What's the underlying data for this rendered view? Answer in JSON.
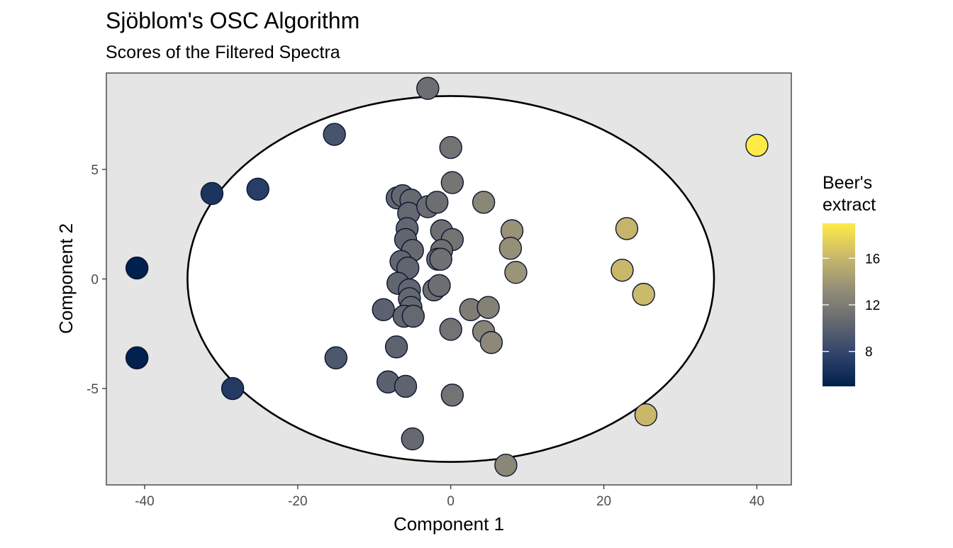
{
  "chart_data": {
    "type": "scatter",
    "title": "Sjöblom's OSC Algorithm",
    "subtitle": "Scores of the Filtered Spectra",
    "xlabel": "Component 1",
    "ylabel": "Component 2",
    "xlim": [
      -45,
      44.5
    ],
    "ylim": [
      -9.4,
      9.4
    ],
    "x_ticks": [
      -40,
      -20,
      0,
      20,
      40
    ],
    "y_ticks": [
      -5,
      0,
      5
    ],
    "x_tick_labels": [
      "-40",
      "-20",
      "0",
      "20",
      "40"
    ],
    "y_tick_labels": [
      "-5",
      "0",
      "5"
    ],
    "grid": false,
    "panel_background": "#e5e5e5",
    "ellipse": {
      "center": [
        0,
        0
      ],
      "rx": 34.4,
      "ry": 8.35,
      "fill": "#ffffff",
      "stroke": "#000000"
    },
    "color_scale": {
      "name": "Beer's extract",
      "title_lines": [
        "Beer's",
        "extract"
      ],
      "min": 5.0,
      "max": 19.0,
      "ticks": [
        8,
        12,
        16
      ],
      "tick_labels": [
        "8",
        "12",
        "16"
      ],
      "colors": [
        "#00204d",
        "#31446b",
        "#666970",
        "#958f78",
        "#cbba69",
        "#ffea46"
      ],
      "legend_position": "right"
    },
    "points": [
      {
        "x": -3.0,
        "y": 8.7,
        "c": 11.0
      },
      {
        "x": -15.2,
        "y": 6.6,
        "c": 9.0
      },
      {
        "x": 0.0,
        "y": 6.0,
        "c": 11.4
      },
      {
        "x": 40.0,
        "y": 6.1,
        "c": 19.0
      },
      {
        "x": 0.2,
        "y": 4.4,
        "c": 11.5
      },
      {
        "x": -31.2,
        "y": 3.9,
        "c": 6.6
      },
      {
        "x": -25.2,
        "y": 4.1,
        "c": 7.3
      },
      {
        "x": -7.0,
        "y": 3.7,
        "c": 10.4
      },
      {
        "x": -6.3,
        "y": 3.8,
        "c": 10.5
      },
      {
        "x": -5.2,
        "y": 3.6,
        "c": 10.6
      },
      {
        "x": -5.5,
        "y": 3.0,
        "c": 10.5
      },
      {
        "x": -3.0,
        "y": 3.3,
        "c": 10.8
      },
      {
        "x": -1.8,
        "y": 3.5,
        "c": 11.0
      },
      {
        "x": 4.3,
        "y": 3.5,
        "c": 12.8
      },
      {
        "x": -5.7,
        "y": 2.3,
        "c": 10.4
      },
      {
        "x": -5.9,
        "y": 1.8,
        "c": 10.3
      },
      {
        "x": -5.0,
        "y": 1.3,
        "c": 10.6
      },
      {
        "x": -1.2,
        "y": 2.2,
        "c": 11.0
      },
      {
        "x": 0.2,
        "y": 1.8,
        "c": 11.4
      },
      {
        "x": -1.2,
        "y": 1.3,
        "c": 11.1
      },
      {
        "x": 8.0,
        "y": 2.2,
        "c": 13.6
      },
      {
        "x": 23.0,
        "y": 2.3,
        "c": 15.9
      },
      {
        "x": -6.5,
        "y": 0.8,
        "c": 10.4
      },
      {
        "x": -5.6,
        "y": 0.5,
        "c": 10.3
      },
      {
        "x": -1.7,
        "y": 0.9,
        "c": 11.0
      },
      {
        "x": -1.3,
        "y": 0.9,
        "c": 11.1
      },
      {
        "x": 7.8,
        "y": 1.4,
        "c": 13.4
      },
      {
        "x": 8.5,
        "y": 0.3,
        "c": 13.7
      },
      {
        "x": 22.4,
        "y": 0.4,
        "c": 16.1
      },
      {
        "x": -41.0,
        "y": 0.5,
        "c": 5.0
      },
      {
        "x": -6.9,
        "y": -0.2,
        "c": 10.3
      },
      {
        "x": -5.4,
        "y": -0.5,
        "c": 10.4
      },
      {
        "x": -2.2,
        "y": -0.5,
        "c": 10.9
      },
      {
        "x": -1.5,
        "y": -0.3,
        "c": 11.0
      },
      {
        "x": 25.2,
        "y": -0.7,
        "c": 16.2
      },
      {
        "x": -5.4,
        "y": -0.9,
        "c": 10.5
      },
      {
        "x": -5.2,
        "y": -1.3,
        "c": 10.5
      },
      {
        "x": -8.8,
        "y": -1.4,
        "c": 10.0
      },
      {
        "x": -6.1,
        "y": -1.7,
        "c": 10.3
      },
      {
        "x": -4.9,
        "y": -1.7,
        "c": 10.5
      },
      {
        "x": 2.6,
        "y": -1.4,
        "c": 12.0
      },
      {
        "x": 4.9,
        "y": -1.3,
        "c": 12.4
      },
      {
        "x": 0.0,
        "y": -2.3,
        "c": 11.3
      },
      {
        "x": 4.3,
        "y": -2.4,
        "c": 12.6
      },
      {
        "x": 5.3,
        "y": -2.9,
        "c": 12.9
      },
      {
        "x": -7.1,
        "y": -3.1,
        "c": 10.2
      },
      {
        "x": -15.0,
        "y": -3.6,
        "c": 9.3
      },
      {
        "x": -41.0,
        "y": -3.6,
        "c": 5.1
      },
      {
        "x": -8.2,
        "y": -4.7,
        "c": 10.0
      },
      {
        "x": -5.9,
        "y": -4.9,
        "c": 10.2
      },
      {
        "x": -28.5,
        "y": -5.0,
        "c": 7.0
      },
      {
        "x": 0.2,
        "y": -5.3,
        "c": 11.3
      },
      {
        "x": 25.5,
        "y": -6.2,
        "c": 16.1
      },
      {
        "x": -5.0,
        "y": -7.3,
        "c": 10.6
      },
      {
        "x": 7.2,
        "y": -8.5,
        "c": 12.8
      }
    ]
  }
}
